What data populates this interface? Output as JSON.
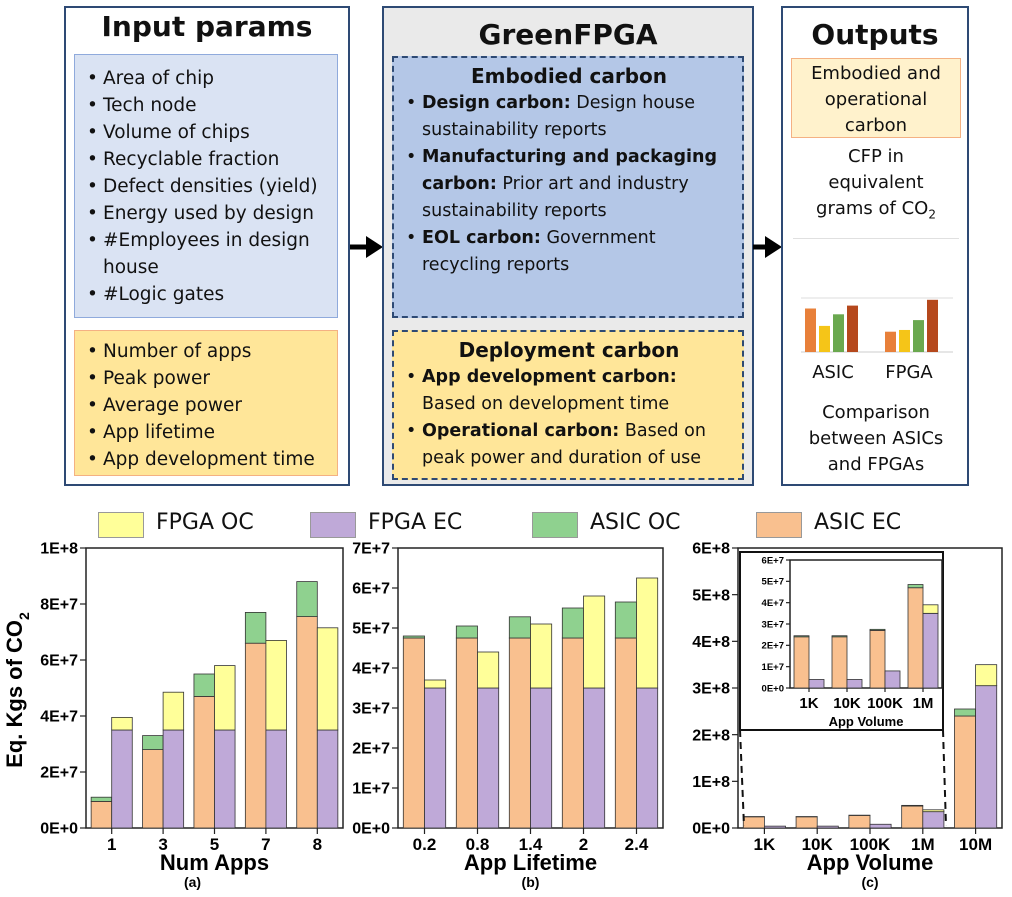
{
  "input": {
    "title": "Input params",
    "group1": [
      "Area of chip",
      "Tech node",
      "Volume of chips",
      "Recyclable fraction",
      "Defect densities (yield)",
      "Energy used by design",
      "#Employees in design house",
      "#Logic gates"
    ],
    "group2": [
      "Number of apps",
      "Peak power",
      "Average power",
      "App lifetime",
      "App development time"
    ]
  },
  "green": {
    "title": "GreenFPGA",
    "embodied": {
      "title": "Embodied carbon",
      "items": [
        {
          "bold": "Design carbon:",
          "text": " Design house sustainability reports"
        },
        {
          "bold": "Manufacturing and packaging carbon:",
          "text": " Prior art and industry sustainability  reports"
        },
        {
          "bold": "EOL carbon:",
          "text": " Government recycling  reports"
        }
      ]
    },
    "deployment": {
      "title": "Deployment carbon",
      "items": [
        {
          "bold": "App development carbon:",
          "text": " Based on  development time"
        },
        {
          "bold": "Operational carbon:",
          "text": " Based on peak power and duration of use"
        }
      ]
    }
  },
  "outputs": {
    "title": "Outputs",
    "highlight": "Embodied and operational carbon",
    "cfp_main": "CFP  in equivalent grams of CO",
    "cfp_sub": "2",
    "mini_labels": [
      "ASIC",
      "FPGA"
    ],
    "comparison": "Comparison between ASICs and FPGAs",
    "mini_bars": {
      "ASIC": [
        0.75,
        0.45,
        0.65,
        0.8
      ],
      "FPGA": [
        0.35,
        0.38,
        0.55,
        0.9
      ]
    },
    "mini_colors": [
      "#e8803a",
      "#f5c518",
      "#6aa84f",
      "#b5481c"
    ]
  },
  "legend": [
    {
      "label": "FPGA OC",
      "color": "#ffff99"
    },
    {
      "label": "FPGA EC",
      "color": "#bfa9d8"
    },
    {
      "label": "ASIC OC",
      "color": "#8fd18f"
    },
    {
      "label": "ASIC EC",
      "color": "#f9c08f"
    }
  ],
  "y_axis_label": "Eq. Kgs of CO",
  "y_axis_sub": "2",
  "chart_data": [
    {
      "type": "bar",
      "stacked": true,
      "categories": [
        "1",
        "3",
        "5",
        "7",
        "8"
      ],
      "xlabel": "Num Apps",
      "caption": "(a)",
      "ylim": [
        0,
        100000000
      ],
      "yticks": [
        "0E+0",
        "2E+7",
        "4E+7",
        "6E+7",
        "8E+7",
        "1E+8"
      ],
      "asic": {
        "ec": [
          9500000,
          28000000,
          47000000,
          66000000,
          75500000
        ],
        "oc": [
          1500000,
          5000000,
          8000000,
          11000000,
          12500000
        ]
      },
      "fpga": {
        "ec": [
          35000000,
          35000000,
          35000000,
          35000000,
          35000000
        ],
        "oc": [
          4500000,
          13500000,
          23000000,
          32000000,
          36500000
        ]
      }
    },
    {
      "type": "bar",
      "stacked": true,
      "categories": [
        "0.2",
        "0.8",
        "1.4",
        "2",
        "2.4"
      ],
      "xlabel": "App Lifetime",
      "caption": "(b)",
      "ylim": [
        0,
        70000000
      ],
      "yticks": [
        "0E+0",
        "1E+7",
        "2E+7",
        "3E+7",
        "4E+7",
        "5E+7",
        "6E+7",
        "7E+7"
      ],
      "asic": {
        "ec": [
          47500000,
          47500000,
          47500000,
          47500000,
          47500000
        ],
        "oc": [
          500000,
          3000000,
          5300000,
          7500000,
          9000000
        ]
      },
      "fpga": {
        "ec": [
          35000000,
          35000000,
          35000000,
          35000000,
          35000000
        ],
        "oc": [
          2000000,
          9000000,
          16000000,
          23000000,
          27500000
        ]
      }
    },
    {
      "type": "bar",
      "stacked": true,
      "categories": [
        "1K",
        "10K",
        "100K",
        "1M",
        "10M"
      ],
      "xlabel": "App Volume",
      "caption": "(c)",
      "ylim": [
        0,
        600000000
      ],
      "yticks": [
        "0E+0",
        "1E+8",
        "2E+8",
        "3E+8",
        "4E+8",
        "5E+8",
        "6E+8"
      ],
      "asic": {
        "ec": [
          24000000,
          24000000,
          27000000,
          47000000,
          240000000
        ],
        "oc": [
          500000,
          500000,
          500000,
          1500000,
          15000000
        ]
      },
      "fpga": {
        "ec": [
          4000000,
          4000000,
          8000000,
          35000000,
          305000000
        ],
        "oc": [
          0,
          0,
          0,
          4000000,
          45000000
        ]
      },
      "inset": {
        "categories": [
          "1K",
          "10K",
          "100K",
          "1M"
        ],
        "xlabel": "App Volume",
        "ylim": [
          0,
          60000000
        ],
        "yticks": [
          "0E+0",
          "1E+7",
          "2E+7",
          "3E+7",
          "4E+7",
          "5E+7",
          "6E+7"
        ],
        "asic": {
          "ec": [
            24000000,
            24000000,
            27000000,
            47000000
          ],
          "oc": [
            500000,
            500000,
            500000,
            1500000
          ]
        },
        "fpga": {
          "ec": [
            4000000,
            4000000,
            8000000,
            35000000
          ],
          "oc": [
            0,
            0,
            0,
            4000000
          ]
        }
      }
    }
  ]
}
